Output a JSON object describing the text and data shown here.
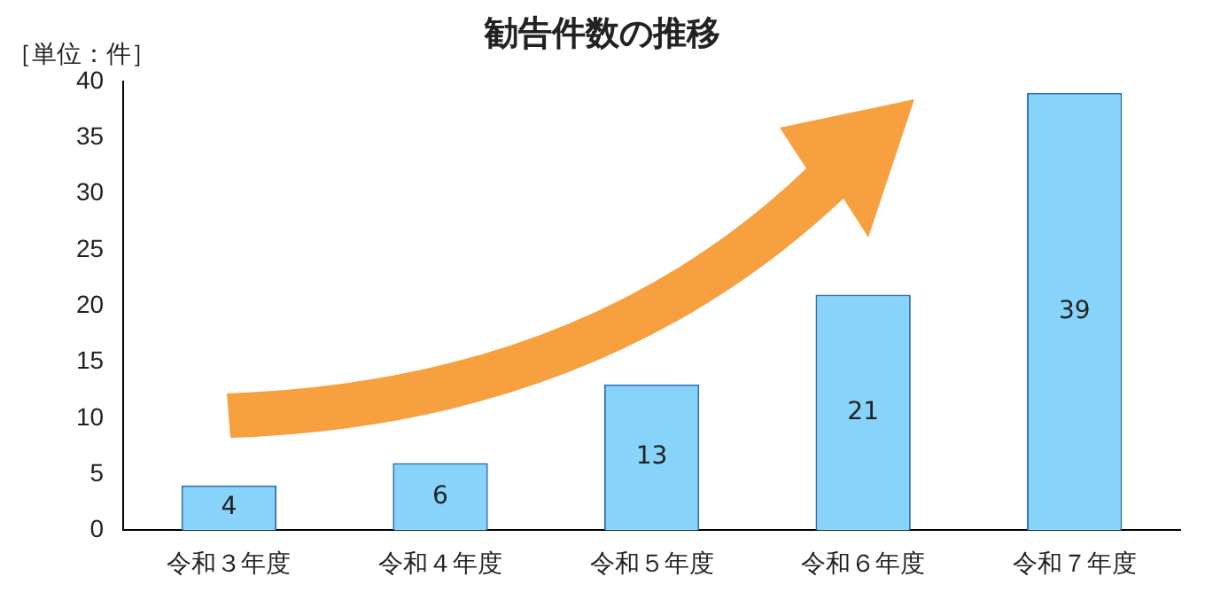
{
  "chart_data": {
    "type": "bar",
    "title": "勧告件数の推移",
    "ylabel": "［単位：件］",
    "categories": [
      "令和３年度",
      "令和４年度",
      "令和５年度",
      "令和６年度",
      "令和７年度"
    ],
    "values": [
      4,
      6,
      13,
      21,
      39
    ],
    "color": "#87d3fa",
    "ylim": [
      0,
      40
    ],
    "yticks": [
      0,
      5,
      10,
      15,
      20,
      25,
      30,
      35,
      40
    ],
    "grid": false,
    "legend": false,
    "data_labels": true
  }
}
